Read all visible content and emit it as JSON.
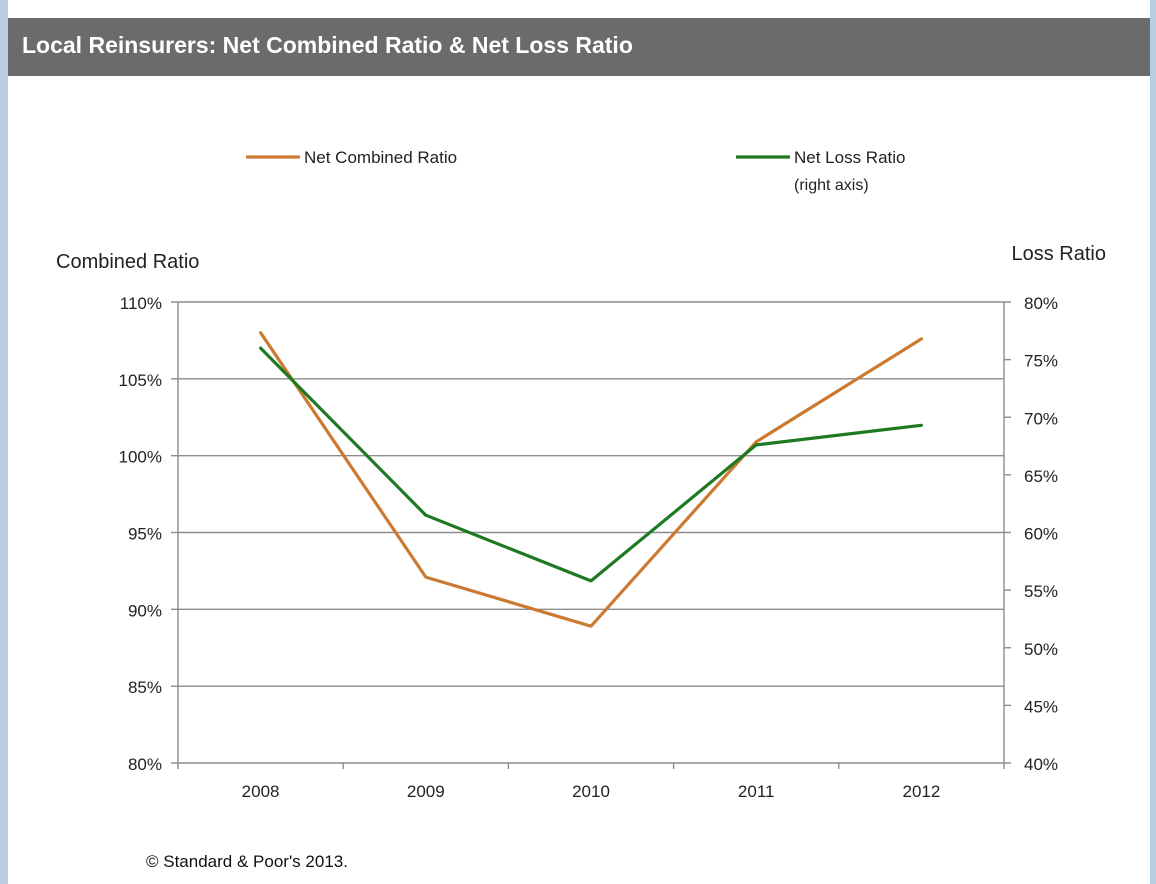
{
  "header": {
    "title": "Local Reinsurers: Net Combined Ratio & Net Loss  Ratio"
  },
  "chart_data": {
    "type": "line",
    "categories": [
      "2008",
      "2009",
      "2010",
      "2011",
      "2012"
    ],
    "series": [
      {
        "name": "Net Combined Ratio",
        "axis": "left",
        "color": "#cc7a32",
        "values": [
          108.0,
          92.1,
          88.9,
          100.9,
          107.6
        ]
      },
      {
        "name": "Net Loss Ratio",
        "name_line2": "(right axis)",
        "axis": "right",
        "color": "#1e7a22",
        "values": [
          76.0,
          61.5,
          55.8,
          67.6,
          69.3
        ]
      }
    ],
    "left_axis": {
      "label": "Combined Ratio",
      "range": [
        80,
        110
      ],
      "ticks": [
        "80%",
        "85%",
        "90%",
        "95%",
        "100%",
        "105%",
        "110%"
      ]
    },
    "right_axis": {
      "label": "Loss Ratio",
      "range": [
        40,
        80
      ],
      "ticks": [
        "40%",
        "45%",
        "50%",
        "55%",
        "60%",
        "65%",
        "70%",
        "75%",
        "80%"
      ]
    },
    "grid": "horizontal",
    "legend": "top"
  },
  "footer": {
    "source": "© Standard & Poor's 2013."
  }
}
